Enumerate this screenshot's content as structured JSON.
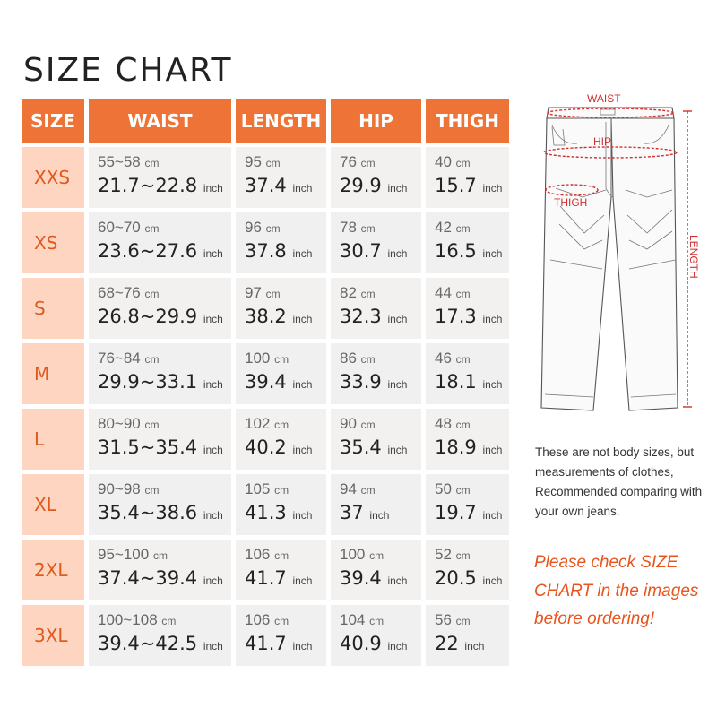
{
  "title": "SIZE CHART",
  "columns": [
    "SIZE",
    "WAIST",
    "LENGTH",
    "HIP",
    "THIGH"
  ],
  "unit_cm": "cm",
  "unit_inch": "inch",
  "rows": [
    {
      "size": "XXS",
      "waist_cm": "55~58",
      "waist_in": "21.7~22.8",
      "length_cm": "95",
      "length_in": "37.4",
      "hip_cm": "76",
      "hip_in": "29.9",
      "thigh_cm": "40",
      "thigh_in": "15.7"
    },
    {
      "size": "XS",
      "waist_cm": "60~70",
      "waist_in": "23.6~27.6",
      "length_cm": "96",
      "length_in": "37.8",
      "hip_cm": "78",
      "hip_in": "30.7",
      "thigh_cm": "42",
      "thigh_in": "16.5"
    },
    {
      "size": "S",
      "waist_cm": "68~76",
      "waist_in": "26.8~29.9",
      "length_cm": "97",
      "length_in": "38.2",
      "hip_cm": "82",
      "hip_in": "32.3",
      "thigh_cm": "44",
      "thigh_in": "17.3"
    },
    {
      "size": "M",
      "waist_cm": "76~84",
      "waist_in": "29.9~33.1",
      "length_cm": "100",
      "length_in": "39.4",
      "hip_cm": "86",
      "hip_in": "33.9",
      "thigh_cm": "46",
      "thigh_in": "18.1"
    },
    {
      "size": "L",
      "waist_cm": "80~90",
      "waist_in": "31.5~35.4",
      "length_cm": "102",
      "length_in": "40.2",
      "hip_cm": "90",
      "hip_in": "35.4",
      "thigh_cm": "48",
      "thigh_in": "18.9"
    },
    {
      "size": "XL",
      "waist_cm": "90~98",
      "waist_in": "35.4~38.6",
      "length_cm": "105",
      "length_in": "41.3",
      "hip_cm": "94",
      "hip_in": "37",
      "thigh_cm": "50",
      "thigh_in": "19.7"
    },
    {
      "size": "2XL",
      "waist_cm": "95~100",
      "waist_in": "37.4~39.4",
      "length_cm": "106",
      "length_in": "41.7",
      "hip_cm": "100",
      "hip_in": "39.4",
      "thigh_cm": "52",
      "thigh_in": "20.5"
    },
    {
      "size": "3XL",
      "waist_cm": "100~108",
      "waist_in": "39.4~42.5",
      "length_cm": "106",
      "length_in": "41.7",
      "hip_cm": "104",
      "hip_in": "40.9",
      "thigh_cm": "56",
      "thigh_in": "22"
    }
  ],
  "diagram": {
    "waist": "WAIST",
    "hip": "HIP",
    "thigh": "THIGH",
    "length": "LENGTH"
  },
  "note": "These are not body sizes, but measurements of clothes, Recommended comparing with your own jeans.",
  "warning": "Please check SIZE CHART in the images before ordering!",
  "colors": {
    "header": "#ee7336",
    "size_cell": "#fdd5c0",
    "accent_text": "#e05a1f",
    "measure_line": "#d3302f"
  }
}
